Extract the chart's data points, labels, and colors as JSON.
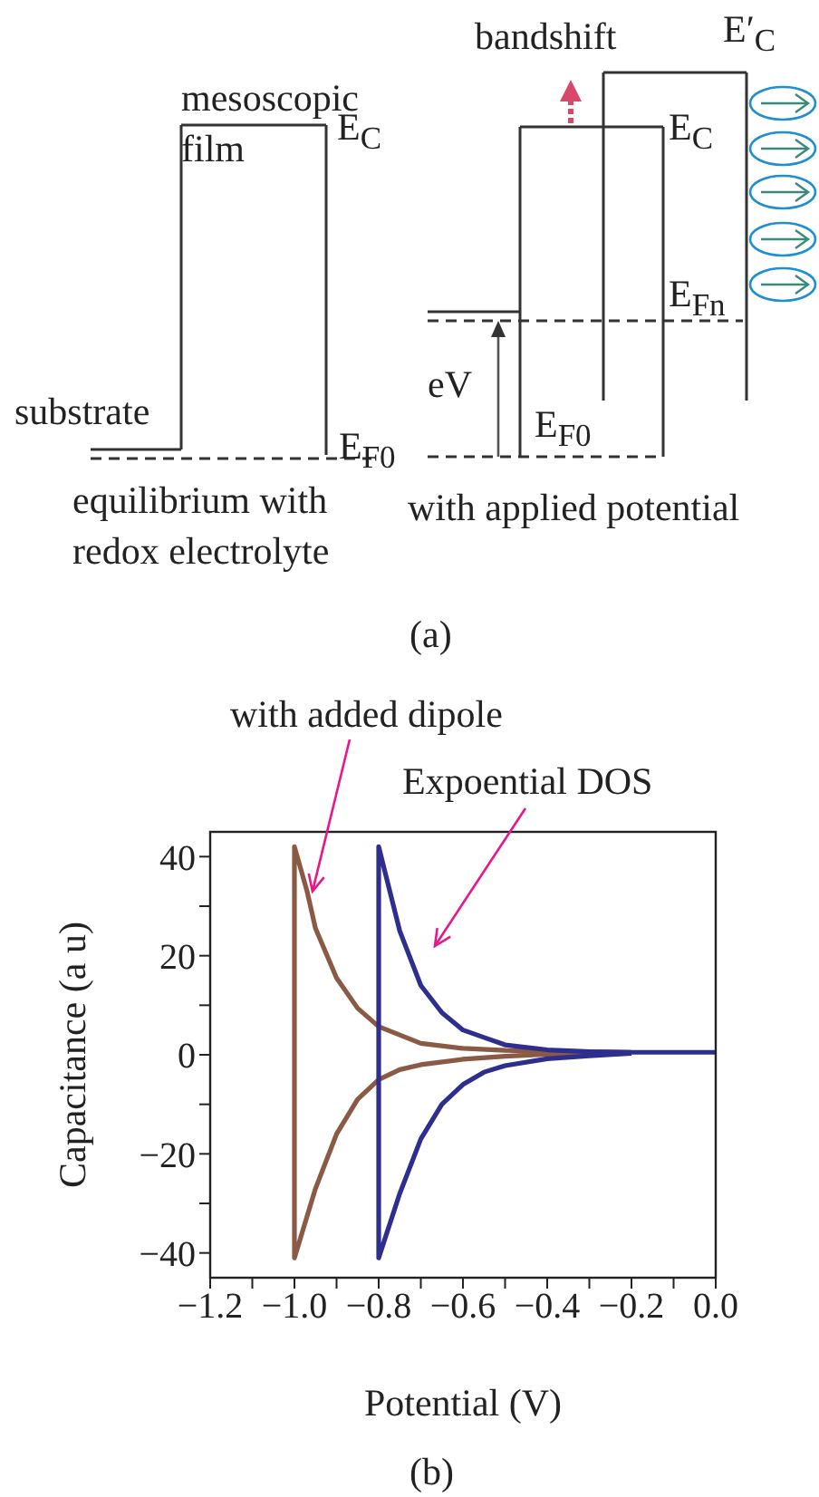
{
  "chart_data": [
    {
      "type": "other",
      "title": "(a)",
      "annotations": [
        "mesoscopic film",
        "E$_{C}$",
        "E$_{F0}$",
        "substrate",
        "equilibrium with redox electrolyte",
        "bandshift",
        "E′$_{C}$",
        "E$_{C}$",
        "E$_{Fn}$",
        "eV",
        "E$_{F0}$",
        "with applied potential"
      ]
    },
    {
      "type": "line",
      "title": "(b)",
      "xlabel": "Potential (V)",
      "ylabel": "Capacitance (a u)",
      "xlim": [
        -1.2,
        0.0
      ],
      "ylim": [
        -45,
        45
      ],
      "xticks": [
        {
          "value": -1.2,
          "label": "−1.2"
        },
        {
          "value": -1.1,
          "label": null
        },
        {
          "value": -1.0,
          "label": "−1.0"
        },
        {
          "value": -0.9,
          "label": null
        },
        {
          "value": -0.8,
          "label": "−0.8"
        },
        {
          "value": -0.7,
          "label": null
        },
        {
          "value": -0.6,
          "label": "−0.6"
        },
        {
          "value": -0.5,
          "label": null
        },
        {
          "value": -0.4,
          "label": "−0.4"
        },
        {
          "value": -0.3,
          "label": null
        },
        {
          "value": -0.2,
          "label": "−0.2"
        },
        {
          "value": -0.1,
          "label": null
        },
        {
          "value": 0.0,
          "label": "0.0"
        }
      ],
      "yticks": [
        {
          "value": -40,
          "label": "−40"
        },
        {
          "value": -30,
          "label": null
        },
        {
          "value": -20,
          "label": "−20"
        },
        {
          "value": -10,
          "label": null
        },
        0,
        {
          "value": 10,
          "label": null
        },
        20,
        {
          "value": 30,
          "label": null
        },
        40
      ],
      "marker": "none",
      "series": [
        {
          "color": "#8b5a44",
          "x": [
            -0.3,
            -0.4,
            -0.5,
            -0.6,
            -0.7,
            -0.75,
            -0.8,
            -0.85,
            -0.9,
            -0.95,
            -1.0,
            -1.0,
            -0.97,
            -0.95,
            -0.9,
            -0.85,
            -0.8,
            -0.7,
            -0.6,
            -0.5,
            -0.4,
            -0.3,
            -0.2
          ],
          "values": [
            0.3,
            0.1,
            -0.3,
            -0.9,
            -2,
            -3,
            -5,
            -9,
            -16,
            -27,
            -41,
            42,
            33,
            25.5,
            15.5,
            9.4,
            5.7,
            2.3,
            1.3,
            0.9,
            0.7,
            0.6,
            0.5
          ]
        },
        {
          "color": "#2e2e8f",
          "x": [
            -0.2,
            -0.3,
            -0.4,
            -0.5,
            -0.55,
            -0.6,
            -0.65,
            -0.7,
            -0.75,
            -0.8,
            -0.8,
            -0.75,
            -0.7,
            -0.65,
            -0.6,
            -0.55,
            -0.5,
            -0.4,
            -0.3,
            -0.2,
            -0.1,
            0.0
          ],
          "values": [
            0.3,
            -0.2,
            -0.8,
            -2.2,
            -3.5,
            -6,
            -10,
            -17,
            -28,
            -41,
            42,
            25,
            14,
            8.5,
            5,
            3.5,
            2,
            1,
            0.6,
            0.5,
            0.5,
            0.5
          ]
        }
      ],
      "annotations": [
        {
          "text": "with added dipole",
          "x": -0.97,
          "y": 33
        },
        "Expoential DOS"
      ]
    }
  ]
}
